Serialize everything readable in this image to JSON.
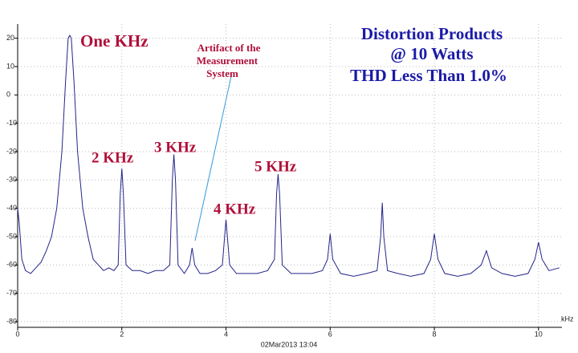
{
  "chart_data": {
    "type": "line",
    "title": [
      "Distortion Products",
      "@ 10 Watts",
      "THD Less Than 1.0%"
    ],
    "annotations": [
      "One KHz",
      "2 KHz",
      "3 KHz",
      "4 KHz",
      "5 KHz"
    ],
    "artifact_note": [
      "Artifact of the",
      "Measurement",
      "System"
    ],
    "footer": "02Mar2013  13:04",
    "x_label": "kHz",
    "xlim": [
      0,
      10.45
    ],
    "xticks": [
      0,
      2,
      4,
      6,
      8,
      10
    ],
    "ylim": [
      -82,
      25
    ],
    "yticks": [
      20,
      10,
      0,
      -10,
      -20,
      -30,
      -40,
      -50,
      -60,
      -70,
      -80
    ],
    "grid": true,
    "series": [
      {
        "color": "#24248a",
        "x": [
          0,
          0.03,
          0.08,
          0.15,
          0.25,
          0.35,
          0.45,
          0.55,
          0.65,
          0.75,
          0.85,
          0.92,
          0.97,
          1.0,
          1.03,
          1.08,
          1.15,
          1.25,
          1.35,
          1.45,
          1.55,
          1.65,
          1.75,
          1.85,
          1.93,
          1.97,
          2.0,
          2.03,
          2.08,
          2.2,
          2.35,
          2.5,
          2.65,
          2.8,
          2.92,
          2.97,
          3.0,
          3.03,
          3.08,
          3.2,
          3.3,
          3.35,
          3.4,
          3.5,
          3.65,
          3.8,
          3.93,
          4.0,
          4.07,
          4.2,
          4.4,
          4.6,
          4.8,
          4.93,
          4.97,
          5.0,
          5.03,
          5.08,
          5.25,
          5.45,
          5.65,
          5.85,
          5.95,
          6.0,
          6.05,
          6.2,
          6.45,
          6.7,
          6.9,
          6.97,
          7.0,
          7.03,
          7.1,
          7.3,
          7.55,
          7.8,
          7.93,
          8.0,
          8.07,
          8.2,
          8.45,
          8.7,
          8.9,
          9.0,
          9.1,
          9.3,
          9.55,
          9.8,
          9.93,
          10.0,
          10.07,
          10.2,
          10.4
        ],
        "values": [
          -40,
          -45,
          -58,
          -62,
          -63,
          -61,
          -59,
          -55,
          -50,
          -40,
          -20,
          5,
          20,
          21,
          20,
          5,
          -20,
          -40,
          -50,
          -58,
          -60,
          -62,
          -61,
          -62,
          -60,
          -35,
          -26,
          -35,
          -60,
          -62,
          -62,
          -63,
          -62,
          -62,
          -60,
          -30,
          -21,
          -30,
          -60,
          -63,
          -60,
          -54,
          -60,
          -63,
          -63,
          -62,
          -60,
          -44,
          -60,
          -63,
          -63,
          -63,
          -62,
          -58,
          -35,
          -28,
          -35,
          -60,
          -63,
          -63,
          -63,
          -62,
          -58,
          -49,
          -58,
          -63,
          -64,
          -63,
          -62,
          -50,
          -38,
          -50,
          -62,
          -63,
          -64,
          -63,
          -58,
          -49,
          -58,
          -63,
          -64,
          -63,
          -60,
          -55,
          -61,
          -63,
          -64,
          -63,
          -58,
          -52,
          -58,
          -62,
          -61
        ]
      }
    ]
  }
}
